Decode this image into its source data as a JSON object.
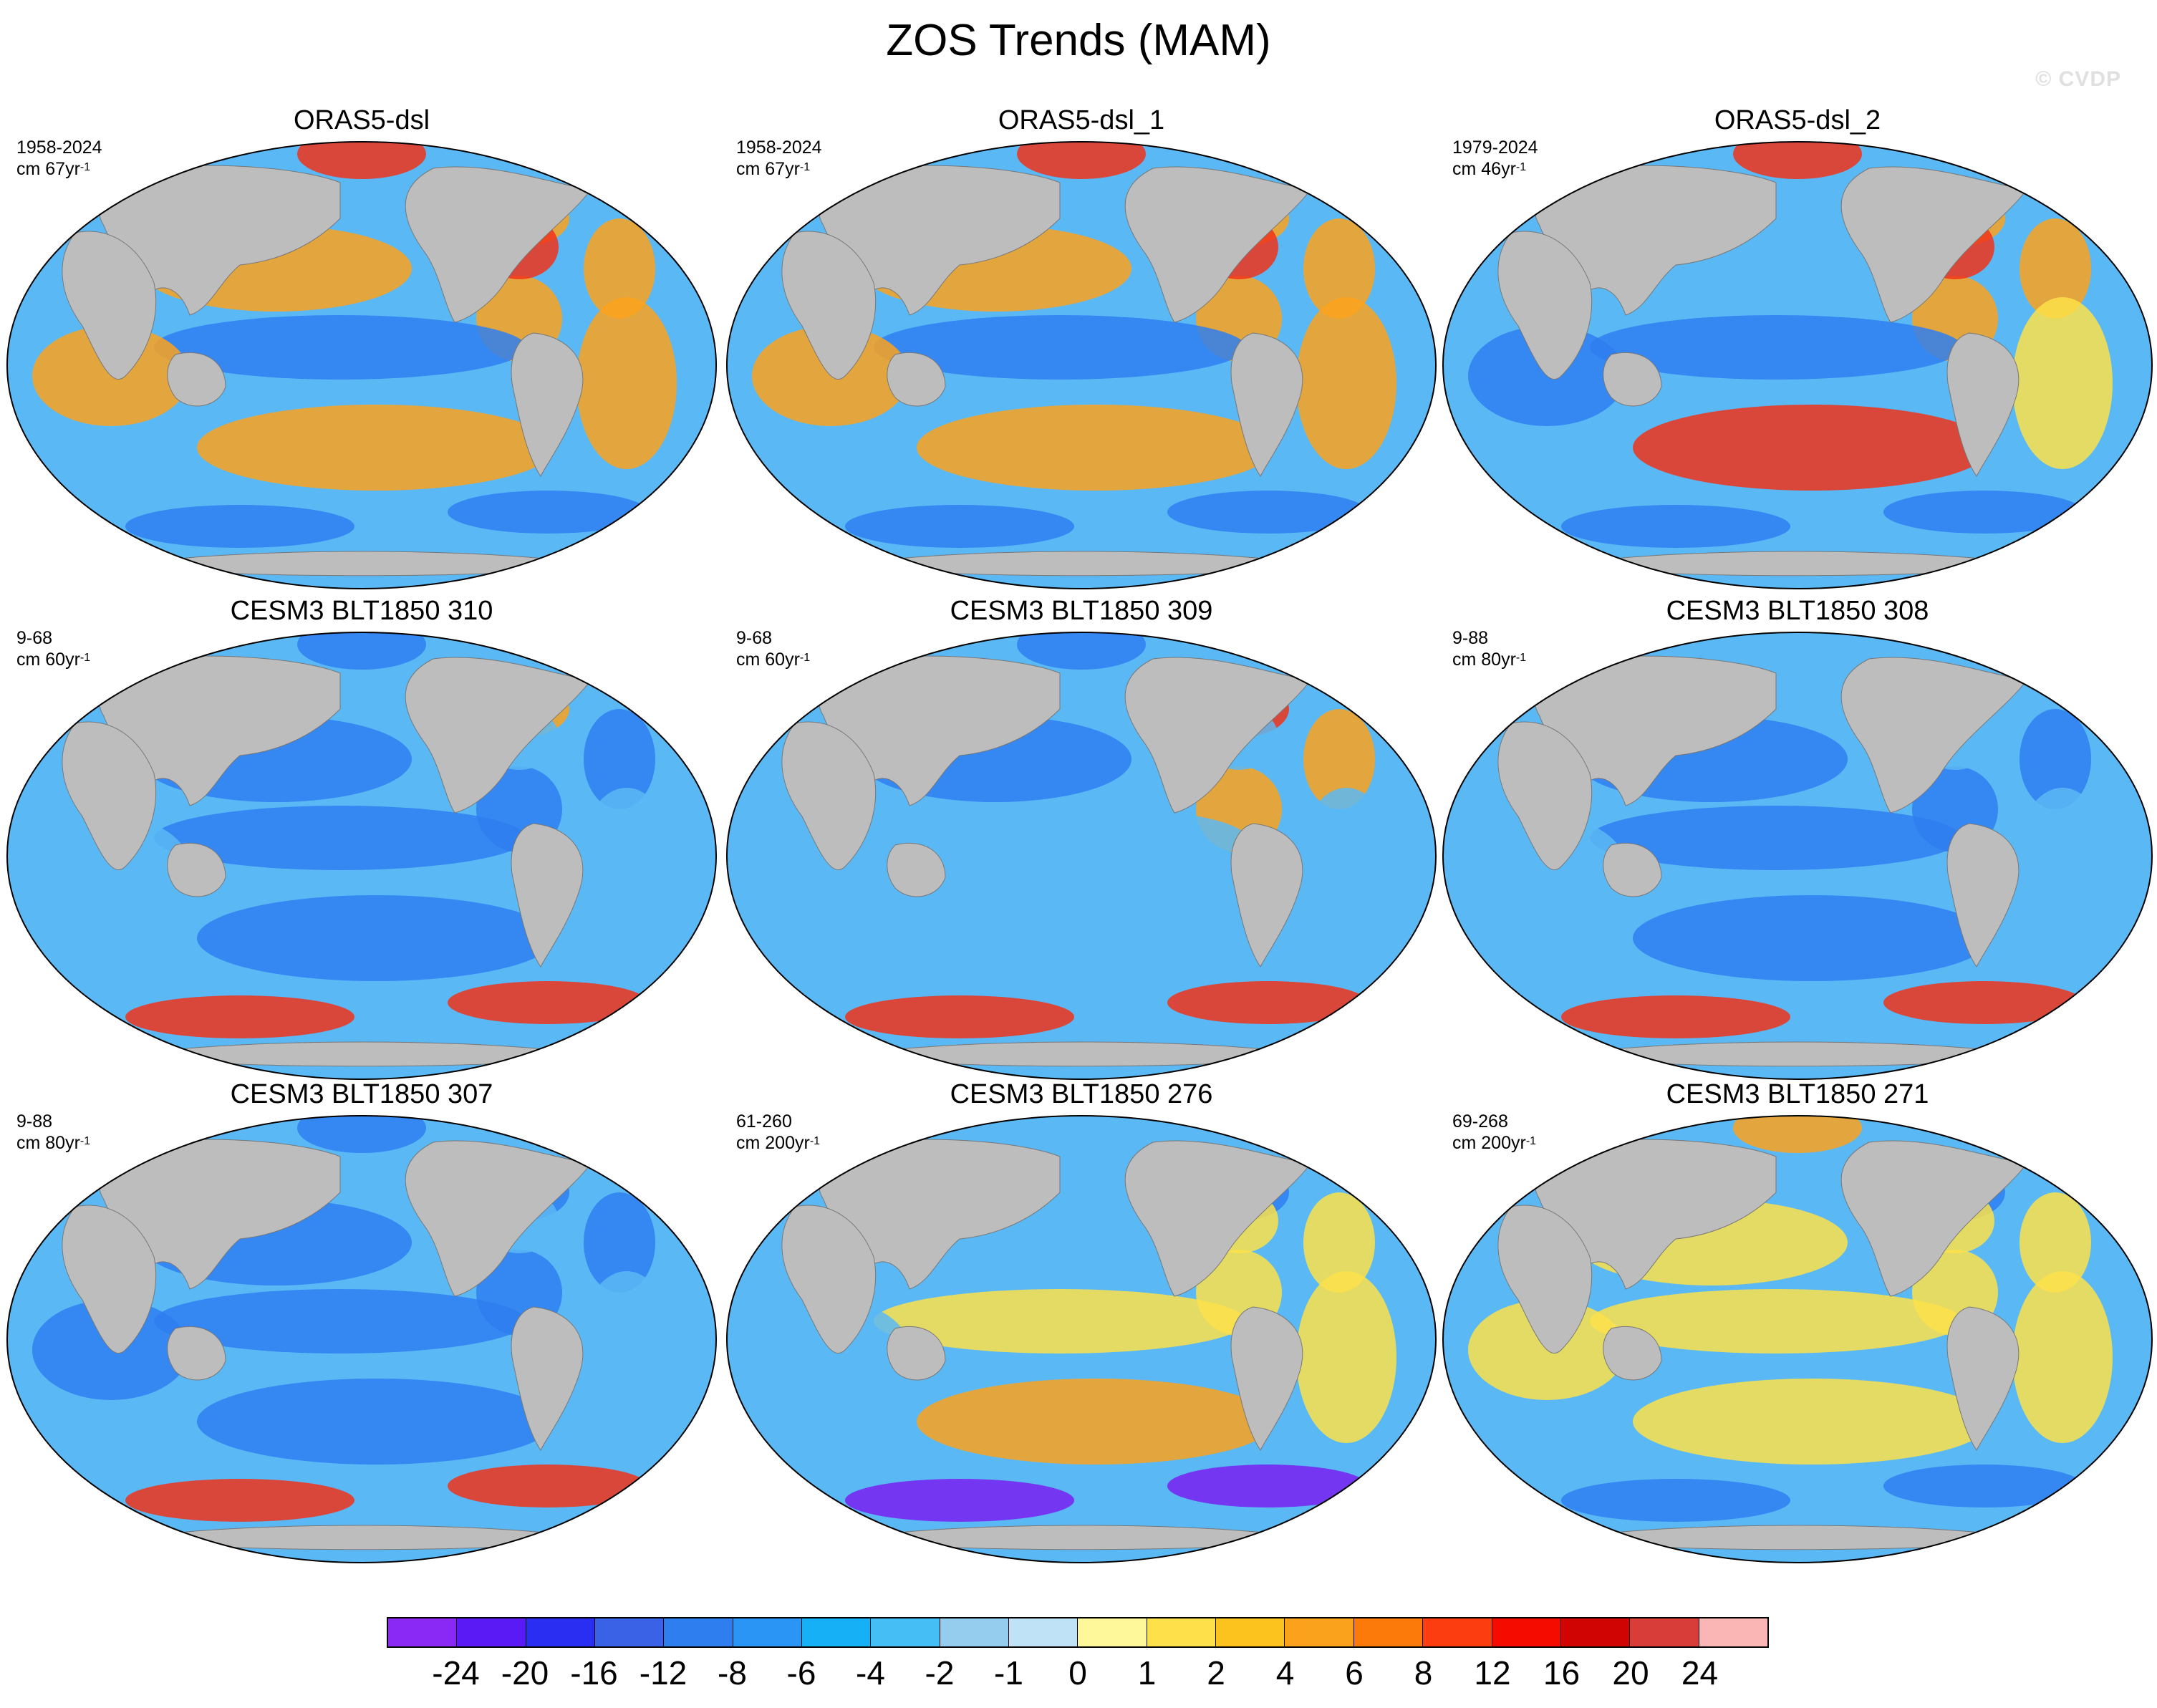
{
  "title": "ZOS Trends (MAM)",
  "watermark": "© CVDP",
  "panels": [
    {
      "title": "ORAS5-dsl",
      "period": "1958-2024",
      "units": "cm 67yr",
      "units_exp": "-1",
      "fields": {
        "np": "red",
        "nia": "orange",
        "na": "orange",
        "ena": "red",
        "eqp": "blue",
        "npac": "orange",
        "ind": "orange",
        "sa": "orange",
        "sp": "orange",
        "ant": "blue"
      }
    },
    {
      "title": "ORAS5-dsl_1",
      "period": "1958-2024",
      "units": "cm 67yr",
      "units_exp": "-1",
      "fields": {
        "np": "red",
        "nia": "orange",
        "na": "orange",
        "ena": "red",
        "eqp": "blue",
        "npac": "orange",
        "ind": "orange",
        "sa": "orange",
        "sp": "orange",
        "ant": "blue"
      }
    },
    {
      "title": "ORAS5-dsl_2",
      "period": "1979-2024",
      "units": "cm 46yr",
      "units_exp": "-1",
      "fields": {
        "np": "red",
        "nia": "orange",
        "na": "orange",
        "ena": "red",
        "eqp": "blue",
        "npac": "lightblue",
        "ind": "blue",
        "sa": "yellow",
        "sp": "red",
        "ant": "blue"
      }
    },
    {
      "title": "CESM3 BLT1850 310",
      "period": "9-68",
      "units": "cm 60yr",
      "units_exp": "-1",
      "fields": {
        "np": "blue",
        "nia": "orange",
        "na": "blue",
        "ena": "lightblue",
        "eqp": "blue",
        "npac": "blue",
        "ind": "lightblue",
        "sa": "lightblue",
        "sp": "blue",
        "ant": "red"
      }
    },
    {
      "title": "CESM3 BLT1850 309",
      "period": "9-68",
      "units": "cm 60yr",
      "units_exp": "-1",
      "fields": {
        "np": "blue",
        "nia": "red",
        "na": "orange",
        "ena": "lightblue",
        "eqp": "lightblue",
        "npac": "blue",
        "ind": "lightblue",
        "sa": "lightblue",
        "sp": "lightblue",
        "ant": "red"
      }
    },
    {
      "title": "CESM3 BLT1850 308",
      "period": "9-88",
      "units": "cm 80yr",
      "units_exp": "-1",
      "fields": {
        "np": "lightblue",
        "nia": "lightblue",
        "na": "blue",
        "ena": "lightblue",
        "eqp": "blue",
        "npac": "blue",
        "ind": "lightblue",
        "sa": "lightblue",
        "sp": "blue",
        "ant": "red"
      }
    },
    {
      "title": "CESM3 BLT1850 307",
      "period": "9-88",
      "units": "cm 80yr",
      "units_exp": "-1",
      "fields": {
        "np": "blue",
        "nia": "blue",
        "na": "blue",
        "ena": "lightblue",
        "eqp": "blue",
        "npac": "blue",
        "ind": "blue",
        "sa": "lightblue",
        "sp": "blue",
        "ant": "red"
      }
    },
    {
      "title": "CESM3 BLT1850 276",
      "period": "61-260",
      "units": "cm 200yr",
      "units_exp": "-1",
      "fields": {
        "np": "lightblue",
        "nia": "blue",
        "na": "yellow",
        "ena": "yellow",
        "eqp": "yellow",
        "npac": "lightblue",
        "ind": "lightblue",
        "sa": "yellow",
        "sp": "orange",
        "ant": "purple"
      }
    },
    {
      "title": "CESM3 BLT1850 271",
      "period": "69-268",
      "units": "cm 200yr",
      "units_exp": "-1",
      "fields": {
        "np": "orange",
        "nia": "blue",
        "na": "yellow",
        "ena": "yellow",
        "eqp": "yellow",
        "npac": "yellow",
        "ind": "yellow",
        "sa": "yellow",
        "sp": "yellow",
        "ant": "blue"
      }
    }
  ],
  "palette": {
    "purple": "#7a1ef0",
    "blue": "#2f7ef0",
    "lightblue": "#5ab8f5",
    "yellow": "#fde04a",
    "orange": "#fba21d",
    "red": "#f0321a",
    "land": "#bdbdbd",
    "ice": "#ffffff"
  },
  "colorbar": {
    "colors": [
      "#8a28f5",
      "#5a1af5",
      "#2a2ef2",
      "#3a62e6",
      "#2f7ef0",
      "#2a95f5",
      "#15b0f5",
      "#45bdf5",
      "#95cdef",
      "#c0e2f7",
      "#fef89a",
      "#fde04a",
      "#fcc21e",
      "#fba21d",
      "#fb7a0a",
      "#fb3d10",
      "#f50b00",
      "#d10404",
      "#d83d3a",
      "#fab5b5"
    ],
    "labels": [
      "-24",
      "-20",
      "-16",
      "-12",
      "-8",
      "-6",
      "-4",
      "-2",
      "-1",
      "0",
      "1",
      "2",
      "4",
      "6",
      "8",
      "12",
      "16",
      "20",
      "24"
    ]
  }
}
